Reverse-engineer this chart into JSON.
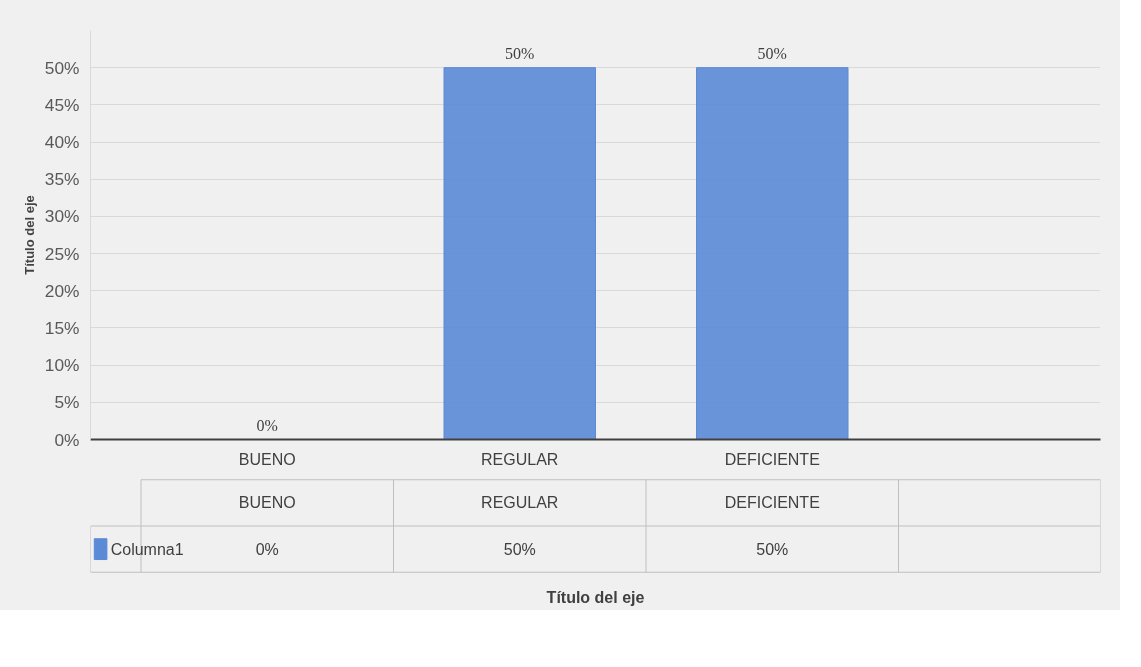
{
  "chart_data": {
    "type": "bar",
    "categories": [
      "BUENO",
      "REGULAR",
      "DEFICIENTE"
    ],
    "series": [
      {
        "name": "Columna1",
        "color": "#5b8ad6",
        "values": [
          0,
          50,
          50
        ],
        "value_labels": [
          "0%",
          "50%",
          "50%"
        ]
      }
    ],
    "annotations": [
      "Título del eje"
    ],
    "ylabel": "Título del eje",
    "ylim": [
      0,
      55
    ],
    "yticks": [
      {
        "value": 0,
        "label": "0%"
      },
      {
        "value": 5,
        "label": "5%"
      },
      {
        "value": 10,
        "label": "10%"
      },
      {
        "value": 15,
        "label": "15%"
      },
      {
        "value": 20,
        "label": "20%"
      },
      {
        "value": 25,
        "label": "25%"
      },
      {
        "value": 30,
        "label": "30%"
      },
      {
        "value": 35,
        "label": "35%"
      },
      {
        "value": 40,
        "label": "40%"
      },
      {
        "value": 45,
        "label": "45%"
      },
      {
        "value": 50,
        "label": "50%"
      }
    ],
    "grid": "y",
    "legend": "bottom"
  }
}
